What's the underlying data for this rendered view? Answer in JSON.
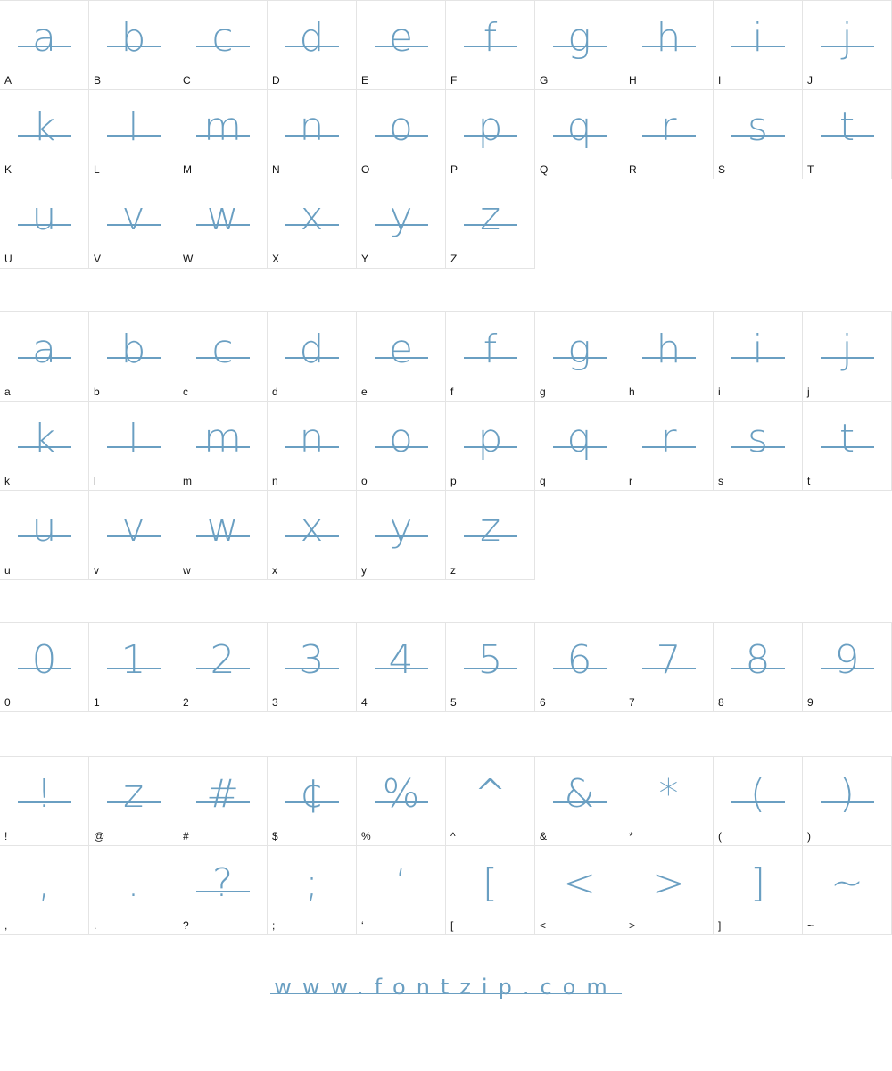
{
  "colors": {
    "accent": "#6a9fc2",
    "border": "#e4e4e4",
    "label": "#111111"
  },
  "sections": [
    {
      "name": "uppercase",
      "cells": [
        {
          "label": "A",
          "glyph": "a"
        },
        {
          "label": "B",
          "glyph": "b"
        },
        {
          "label": "C",
          "glyph": "c"
        },
        {
          "label": "D",
          "glyph": "d"
        },
        {
          "label": "E",
          "glyph": "e"
        },
        {
          "label": "F",
          "glyph": "f"
        },
        {
          "label": "G",
          "glyph": "g"
        },
        {
          "label": "H",
          "glyph": "h"
        },
        {
          "label": "I",
          "glyph": "i"
        },
        {
          "label": "J",
          "glyph": "j"
        },
        {
          "label": "K",
          "glyph": "k"
        },
        {
          "label": "L",
          "glyph": "l"
        },
        {
          "label": "M",
          "glyph": "m"
        },
        {
          "label": "N",
          "glyph": "n"
        },
        {
          "label": "O",
          "glyph": "o"
        },
        {
          "label": "P",
          "glyph": "p"
        },
        {
          "label": "Q",
          "glyph": "q"
        },
        {
          "label": "R",
          "glyph": "r"
        },
        {
          "label": "S",
          "glyph": "s"
        },
        {
          "label": "T",
          "glyph": "t"
        },
        {
          "label": "U",
          "glyph": "u"
        },
        {
          "label": "V",
          "glyph": "v"
        },
        {
          "label": "W",
          "glyph": "w"
        },
        {
          "label": "X",
          "glyph": "x"
        },
        {
          "label": "Y",
          "glyph": "y"
        },
        {
          "label": "Z",
          "glyph": "z"
        }
      ]
    },
    {
      "name": "lowercase",
      "cells": [
        {
          "label": "a",
          "glyph": "a"
        },
        {
          "label": "b",
          "glyph": "b"
        },
        {
          "label": "c",
          "glyph": "c"
        },
        {
          "label": "d",
          "glyph": "d"
        },
        {
          "label": "e",
          "glyph": "e"
        },
        {
          "label": "f",
          "glyph": "f"
        },
        {
          "label": "g",
          "glyph": "g"
        },
        {
          "label": "h",
          "glyph": "h"
        },
        {
          "label": "i",
          "glyph": "i"
        },
        {
          "label": "j",
          "glyph": "j"
        },
        {
          "label": "k",
          "glyph": "k"
        },
        {
          "label": "l",
          "glyph": "l"
        },
        {
          "label": "m",
          "glyph": "m"
        },
        {
          "label": "n",
          "glyph": "n"
        },
        {
          "label": "o",
          "glyph": "o"
        },
        {
          "label": "p",
          "glyph": "p"
        },
        {
          "label": "q",
          "glyph": "q"
        },
        {
          "label": "r",
          "glyph": "r"
        },
        {
          "label": "s",
          "glyph": "s"
        },
        {
          "label": "t",
          "glyph": "t"
        },
        {
          "label": "u",
          "glyph": "u"
        },
        {
          "label": "v",
          "glyph": "v"
        },
        {
          "label": "w",
          "glyph": "w"
        },
        {
          "label": "x",
          "glyph": "x"
        },
        {
          "label": "y",
          "glyph": "y"
        },
        {
          "label": "z",
          "glyph": "z"
        }
      ]
    },
    {
      "name": "digits",
      "cells": [
        {
          "label": "0",
          "glyph": "0"
        },
        {
          "label": "1",
          "glyph": "1"
        },
        {
          "label": "2",
          "glyph": "2"
        },
        {
          "label": "3",
          "glyph": "3"
        },
        {
          "label": "4",
          "glyph": "4"
        },
        {
          "label": "5",
          "glyph": "5"
        },
        {
          "label": "6",
          "glyph": "6"
        },
        {
          "label": "7",
          "glyph": "7"
        },
        {
          "label": "8",
          "glyph": "8"
        },
        {
          "label": "9",
          "glyph": "9"
        }
      ]
    },
    {
      "name": "symbols",
      "cells": [
        {
          "label": "!",
          "glyph": "!",
          "strike": true
        },
        {
          "label": "@",
          "glyph": "z",
          "strike": true
        },
        {
          "label": "#",
          "glyph": "#",
          "strike": true
        },
        {
          "label": "$",
          "glyph": "¢",
          "strike": true
        },
        {
          "label": "%",
          "glyph": "%",
          "strike": true
        },
        {
          "label": "^",
          "glyph": "^",
          "strike": false
        },
        {
          "label": "&",
          "glyph": "&",
          "strike": true
        },
        {
          "label": "*",
          "glyph": "*",
          "strike": false
        },
        {
          "label": "(",
          "glyph": "(",
          "strike": true
        },
        {
          "label": ")",
          "glyph": ")",
          "strike": true
        },
        {
          "label": ",",
          "glyph": ",",
          "strike": false
        },
        {
          "label": ".",
          "glyph": ".",
          "strike": false
        },
        {
          "label": "?",
          "glyph": "?",
          "strike": true
        },
        {
          "label": ";",
          "glyph": ";",
          "strike": false
        },
        {
          "label": "‘",
          "glyph": "‘",
          "strike": false
        },
        {
          "label": "[",
          "glyph": "[",
          "strike": false
        },
        {
          "label": "<",
          "glyph": "<",
          "strike": false
        },
        {
          "label": ">",
          "glyph": ">",
          "strike": false
        },
        {
          "label": "]",
          "glyph": "]",
          "strike": false
        },
        {
          "label": "~",
          "glyph": "~",
          "strike": false
        }
      ]
    }
  ],
  "footer": {
    "text": "www.fontzip.com"
  }
}
